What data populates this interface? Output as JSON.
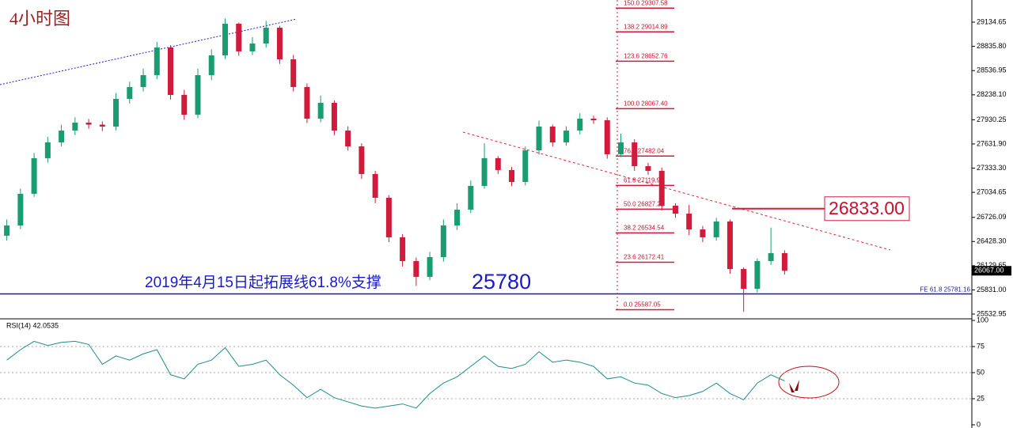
{
  "chart_data": [
    {
      "type": "candlestick",
      "title": "4小时图",
      "open": [
        26500,
        26626,
        27017,
        27456,
        27651,
        27797,
        27895,
        27870,
        27846,
        28188,
        28334,
        28481,
        28822,
        28237,
        27993,
        28481,
        28725,
        29115,
        28774,
        28871,
        29066,
        28676,
        28334,
        27944,
        28139,
        27797,
        27602,
        27261,
        26968,
        26480,
        26187,
        25992,
        26236,
        26626,
        26821,
        27114,
        27456,
        27310,
        27163,
        27553,
        27846,
        27651,
        27797,
        27944,
        27924,
        27505,
        27651,
        27358,
        27300,
        26870,
        26772,
        26577,
        26480,
        26675,
        26089,
        25845,
        26187,
        26285
      ],
      "high": [
        26700,
        27080,
        27520,
        27720,
        27870,
        27960,
        27940,
        27910,
        28260,
        28400,
        28560,
        28890,
        28850,
        28300,
        28560,
        28800,
        29180,
        29130,
        28950,
        29150,
        29090,
        28730,
        28380,
        28230,
        28170,
        27850,
        27640,
        27300,
        27000,
        26520,
        26230,
        26300,
        26700,
        26900,
        27180,
        27640,
        27480,
        27350,
        27600,
        27920,
        27870,
        27850,
        28010,
        27980,
        27960,
        27760,
        27690,
        27400,
        27340,
        26900,
        26880,
        26620,
        26720,
        26700,
        26110,
        26220,
        26600,
        26320
      ],
      "low": [
        26440,
        26580,
        26980,
        27400,
        27600,
        27740,
        27820,
        27790,
        27800,
        28130,
        28280,
        28430,
        28180,
        27930,
        27950,
        28420,
        28680,
        28720,
        28730,
        28820,
        28620,
        28280,
        27890,
        27900,
        27740,
        27550,
        27200,
        26900,
        26420,
        26120,
        25880,
        25950,
        26180,
        26570,
        26780,
        27080,
        27260,
        27110,
        27120,
        27500,
        27600,
        27610,
        27750,
        27880,
        27450,
        27470,
        27300,
        27250,
        26810,
        26720,
        26510,
        26420,
        26440,
        26030,
        25560,
        25800,
        26140,
        26020
      ],
      "close": [
        26626,
        27017,
        27456,
        27651,
        27797,
        27895,
        27870,
        27846,
        28188,
        28334,
        28481,
        28822,
        28237,
        27993,
        28481,
        28725,
        29115,
        28774,
        28871,
        29066,
        28676,
        28334,
        27944,
        28139,
        27797,
        27602,
        27261,
        26968,
        26480,
        26187,
        25992,
        26236,
        26626,
        26821,
        27114,
        27456,
        27310,
        27163,
        27553,
        27846,
        27651,
        27797,
        27944,
        27924,
        27505,
        27651,
        27358,
        27300,
        26870,
        26772,
        26577,
        26480,
        26675,
        26089,
        25845,
        26187,
        26285,
        26067
      ],
      "up_color": "#1a9c73",
      "down_color": "#d11a3c",
      "ylim": [
        25484,
        29408
      ],
      "yticks": [
        29134.65,
        {
          "value": 28835.8,
          "label": "28835.80"
        },
        28536.95,
        {
          "value": 28238.1,
          "label": "28238.10"
        },
        27930.25,
        {
          "value": 27631.9,
          "label": "27631.90"
        },
        {
          "value": 27333.3,
          "label": "27333.30"
        },
        27034.65,
        26726.09,
        {
          "value": 26428.3,
          "label": "26428.30"
        },
        26129.65,
        {
          "value": 25831,
          "label": "25831.00"
        },
        25532.95
      ],
      "current_price": {
        "value": 26067,
        "label": "26067.00"
      },
      "fib_levels": [
        {
          "label": "150.0  29307.58",
          "price": 29307.58
        },
        {
          "label": "138.2  29014.89",
          "price": 29014.89
        },
        {
          "label": "123.6  28652.76",
          "price": 28652.76
        },
        {
          "label": "100.0  28067.40",
          "price": 28067.4
        },
        {
          "label": "76.4  27482.04",
          "price": 27482.04
        },
        {
          "label": "61.8  27119.91",
          "price": 27119.91
        },
        {
          "label": "50.0  26827.22",
          "price": 26827.22
        },
        {
          "label": "38.2  26534.54",
          "price": 26534.54
        },
        {
          "label": "23.6  26172.41",
          "price": 26172.41
        },
        {
          "label": "0.0  25587.05",
          "price": 25587.05
        }
      ],
      "support": {
        "label": "FE 61.8  25781.16",
        "value": 25781.16
      },
      "support_note": "2019年4月15日起拓展线61.8%支撑",
      "support_price": 25780,
      "resistance": {
        "value": 26833,
        "label": "26833.00"
      }
    },
    {
      "type": "line",
      "title": "RSI(14) 42.0535",
      "values": [
        62,
        72,
        80,
        76,
        79,
        80,
        77,
        58,
        66,
        62,
        68,
        72,
        48,
        44,
        58,
        62,
        74,
        56,
        58,
        62,
        48,
        38,
        26,
        34,
        26,
        22,
        18,
        16,
        18,
        20,
        16,
        30,
        40,
        46,
        56,
        66,
        56,
        54,
        58,
        70,
        60,
        62,
        60,
        56,
        44,
        46,
        40,
        38,
        30,
        26,
        28,
        32,
        40,
        30,
        24,
        40,
        48,
        42.0535
      ],
      "color": "#1e8c8c",
      "ylim": [
        -2.3,
        100.8
      ],
      "yticks": [
        100,
        75,
        50,
        25,
        0
      ],
      "grid": true
    }
  ]
}
